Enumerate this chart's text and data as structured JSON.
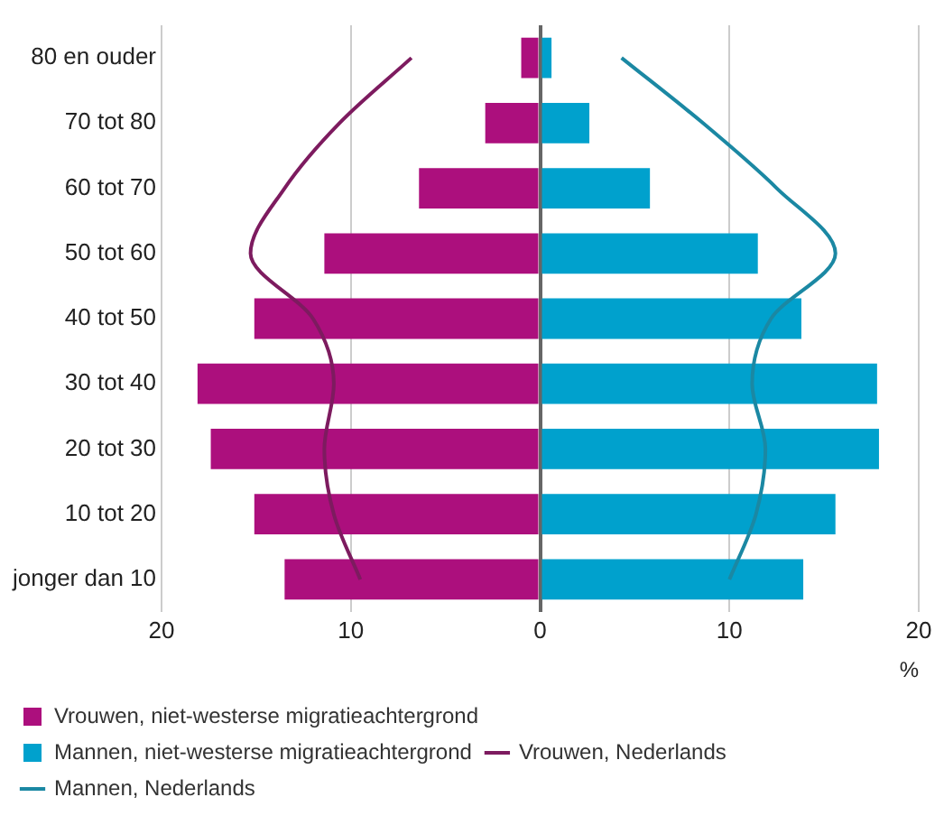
{
  "chart_data": {
    "type": "bar",
    "orientation": "horizontal",
    "xlabel": "%",
    "categories": [
      "80 en ouder",
      "70 tot 80",
      "60 tot 70",
      "50 tot 60",
      "40 tot 50",
      "30 tot 40",
      "20 tot 30",
      "10 tot 20",
      "jonger dan 10"
    ],
    "series": [
      {
        "name": "Vrouwen, niet-westerse migratieachtergrond",
        "color": "#ac0f7d",
        "values": [
          -1.0,
          -2.9,
          -6.4,
          -11.4,
          -15.1,
          -18.1,
          -17.4,
          -15.1,
          -13.5
        ]
      },
      {
        "name": "Mannen, niet-westerse migratieachtergrond",
        "color": "#00a1cd",
        "values": [
          0.6,
          2.6,
          5.8,
          11.5,
          13.8,
          17.8,
          17.9,
          15.6,
          13.9
        ]
      },
      {
        "name": "Vrouwen, Nederlands",
        "type": "line",
        "color": "#7d1b5f",
        "values": [
          -6.8,
          -10.6,
          -13.5,
          -15.3,
          -12.0,
          -10.9,
          -11.4,
          -10.9,
          -9.5
        ]
      },
      {
        "name": "Mannen, Nederlands",
        "type": "line",
        "color": "#1b88a3",
        "values": [
          4.3,
          8.6,
          12.5,
          15.6,
          12.2,
          11.2,
          11.9,
          11.4,
          10.0
        ]
      }
    ],
    "xlim": [
      -20,
      20
    ],
    "xticks": [
      {
        "value": -20,
        "label": "20"
      },
      {
        "value": -10,
        "label": "10"
      },
      0,
      10,
      20
    ],
    "grid": "x",
    "legend": "bottom",
    "marker": "none",
    "stacked": true
  }
}
